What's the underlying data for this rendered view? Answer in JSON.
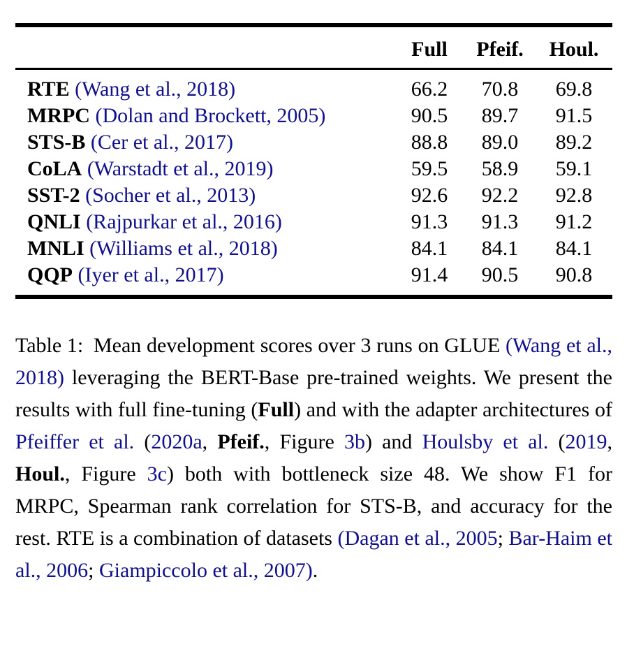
{
  "colors": {
    "text": "#000000",
    "link": "#10108c",
    "rule": "#000000",
    "background": "#ffffff"
  },
  "table": {
    "headers": [
      "Full",
      "Pfeif.",
      "Houl."
    ],
    "rows": [
      {
        "task": "RTE",
        "citation": "(Wang et al., 2018)",
        "values": [
          "66.2",
          "70.8",
          "69.8"
        ]
      },
      {
        "task": "MRPC",
        "citation": "(Dolan and Brockett, 2005)",
        "values": [
          "90.5",
          "89.7",
          "91.5"
        ]
      },
      {
        "task": "STS-B",
        "citation": "(Cer et al., 2017)",
        "values": [
          "88.8",
          "89.0",
          "89.2"
        ]
      },
      {
        "task": "CoLA",
        "citation": "(Warstadt et al., 2019)",
        "values": [
          "59.5",
          "58.9",
          "59.1"
        ]
      },
      {
        "task": "SST-2",
        "citation": "(Socher et al., 2013)",
        "values": [
          "92.6",
          "92.2",
          "92.8"
        ]
      },
      {
        "task": "QNLI",
        "citation": "(Rajpurkar et al., 2016)",
        "values": [
          "91.3",
          "91.3",
          "91.2"
        ]
      },
      {
        "task": "MNLI",
        "citation": "(Williams et al., 2018)",
        "values": [
          "84.1",
          "84.1",
          "84.1"
        ]
      },
      {
        "task": "QQP",
        "citation": "(Iyer et al., 2017)",
        "values": [
          "91.4",
          "90.5",
          "90.8"
        ]
      }
    ]
  },
  "caption": {
    "segments": [
      {
        "text": "Table 1:",
        "style": "label"
      },
      {
        "text": " Mean development scores over 3 runs on GLUE ",
        "style": "plain"
      },
      {
        "text": "(Wang et al., 2018)",
        "style": "link"
      },
      {
        "text": " leveraging the BERT-Base pre-trained weights. We present the results with full fine-tuning (",
        "style": "plain"
      },
      {
        "text": "Full",
        "style": "bold"
      },
      {
        "text": ") and with the adapter architectures of ",
        "style": "plain"
      },
      {
        "text": "Pfeiffer et al.",
        "style": "link"
      },
      {
        "text": " (",
        "style": "plain"
      },
      {
        "text": "2020a",
        "style": "link"
      },
      {
        "text": ", ",
        "style": "plain"
      },
      {
        "text": "Pfeif.",
        "style": "bold"
      },
      {
        "text": ", Figure ",
        "style": "plain"
      },
      {
        "text": "3b",
        "style": "link"
      },
      {
        "text": ") and ",
        "style": "plain"
      },
      {
        "text": "Houlsby et al.",
        "style": "link"
      },
      {
        "text": " (",
        "style": "plain"
      },
      {
        "text": "2019",
        "style": "link"
      },
      {
        "text": ", ",
        "style": "plain"
      },
      {
        "text": "Houl.",
        "style": "bold"
      },
      {
        "text": ", Figure ",
        "style": "plain"
      },
      {
        "text": "3c",
        "style": "link"
      },
      {
        "text": ") both with bottleneck size 48. We show F1 for MRPC, Spearman rank correlation for STS-B, and accuracy for the rest. RTE is a combination of datasets ",
        "style": "plain"
      },
      {
        "text": "(Dagan et al., 2005",
        "style": "link"
      },
      {
        "text": "; ",
        "style": "plain"
      },
      {
        "text": "Bar-Haim et al., 2006",
        "style": "link"
      },
      {
        "text": "; ",
        "style": "plain"
      },
      {
        "text": "Giampiccolo et al., 2007)",
        "style": "link"
      },
      {
        "text": ".",
        "style": "plain"
      }
    ]
  }
}
